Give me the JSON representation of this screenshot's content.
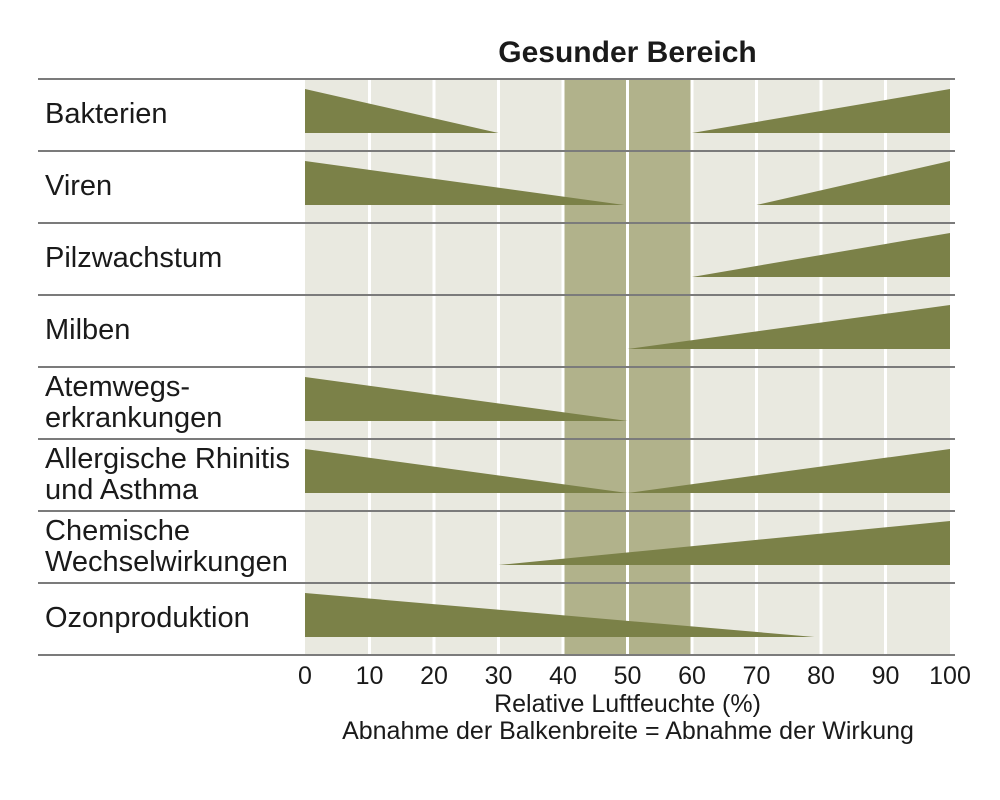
{
  "chart_data": {
    "type": "area",
    "title": "Gesunder Bereich",
    "xlabel": "Relative Luftfeuchte (%)",
    "caption": "Abnahme der Balkenbreite = Abnahme der Wirkung",
    "x_range": [
      0,
      100
    ],
    "x_ticks": [
      "0",
      "10",
      "20",
      "30",
      "40",
      "50",
      "60",
      "70",
      "80",
      "90",
      "100"
    ],
    "grid": true,
    "healthy_band": {
      "from": 40,
      "to": 60,
      "label": "Gesunder Bereich"
    },
    "rows": [
      {
        "label": "Bakterien",
        "label_lines": [
          "Bakterien"
        ],
        "wedges": [
          {
            "from": 0,
            "to": 30,
            "thick_end": "left"
          },
          {
            "from": 60,
            "to": 100,
            "thick_end": "right"
          }
        ]
      },
      {
        "label": "Viren",
        "label_lines": [
          "Viren"
        ],
        "wedges": [
          {
            "from": 0,
            "to": 49.5,
            "thick_end": "left"
          },
          {
            "from": 70,
            "to": 100,
            "thick_end": "right"
          }
        ]
      },
      {
        "label": "Pilzwachstum",
        "label_lines": [
          "Pilzwachstum"
        ],
        "wedges": [
          {
            "from": 60,
            "to": 100,
            "thick_end": "right"
          }
        ]
      },
      {
        "label": "Milben",
        "label_lines": [
          "Milben"
        ],
        "wedges": [
          {
            "from": 50,
            "to": 100,
            "thick_end": "right"
          }
        ]
      },
      {
        "label": "Atemwegs-erkrankungen",
        "label_lines": [
          "Atemwegs-",
          "erkrankungen"
        ],
        "wedges": [
          {
            "from": 0,
            "to": 50,
            "thick_end": "left"
          }
        ]
      },
      {
        "label": "Allergische Rhinitis und Asthma",
        "label_lines": [
          "Allergische Rhinitis",
          "und Asthma"
        ],
        "wedges": [
          {
            "from": 0,
            "to": 50,
            "thick_end": "left"
          },
          {
            "from": 50,
            "to": 100,
            "thick_end": "right"
          }
        ]
      },
      {
        "label": "Chemische Wechselwirkungen",
        "label_lines": [
          "Chemische",
          "Wechselwirkungen"
        ],
        "wedges": [
          {
            "from": 30,
            "to": 100,
            "thick_end": "right"
          }
        ]
      },
      {
        "label": "Ozonproduktion",
        "label_lines": [
          "Ozonproduktion"
        ],
        "wedges": [
          {
            "from": 0,
            "to": 79,
            "thick_end": "left"
          }
        ]
      }
    ]
  },
  "colors": {
    "wedge": "#7b8148",
    "band_light": "#e9e9e0",
    "band_dark": "#b1b28b",
    "gridline": "#ffffff",
    "separator": "#7b7b7b",
    "text": "#1a1a1a"
  }
}
